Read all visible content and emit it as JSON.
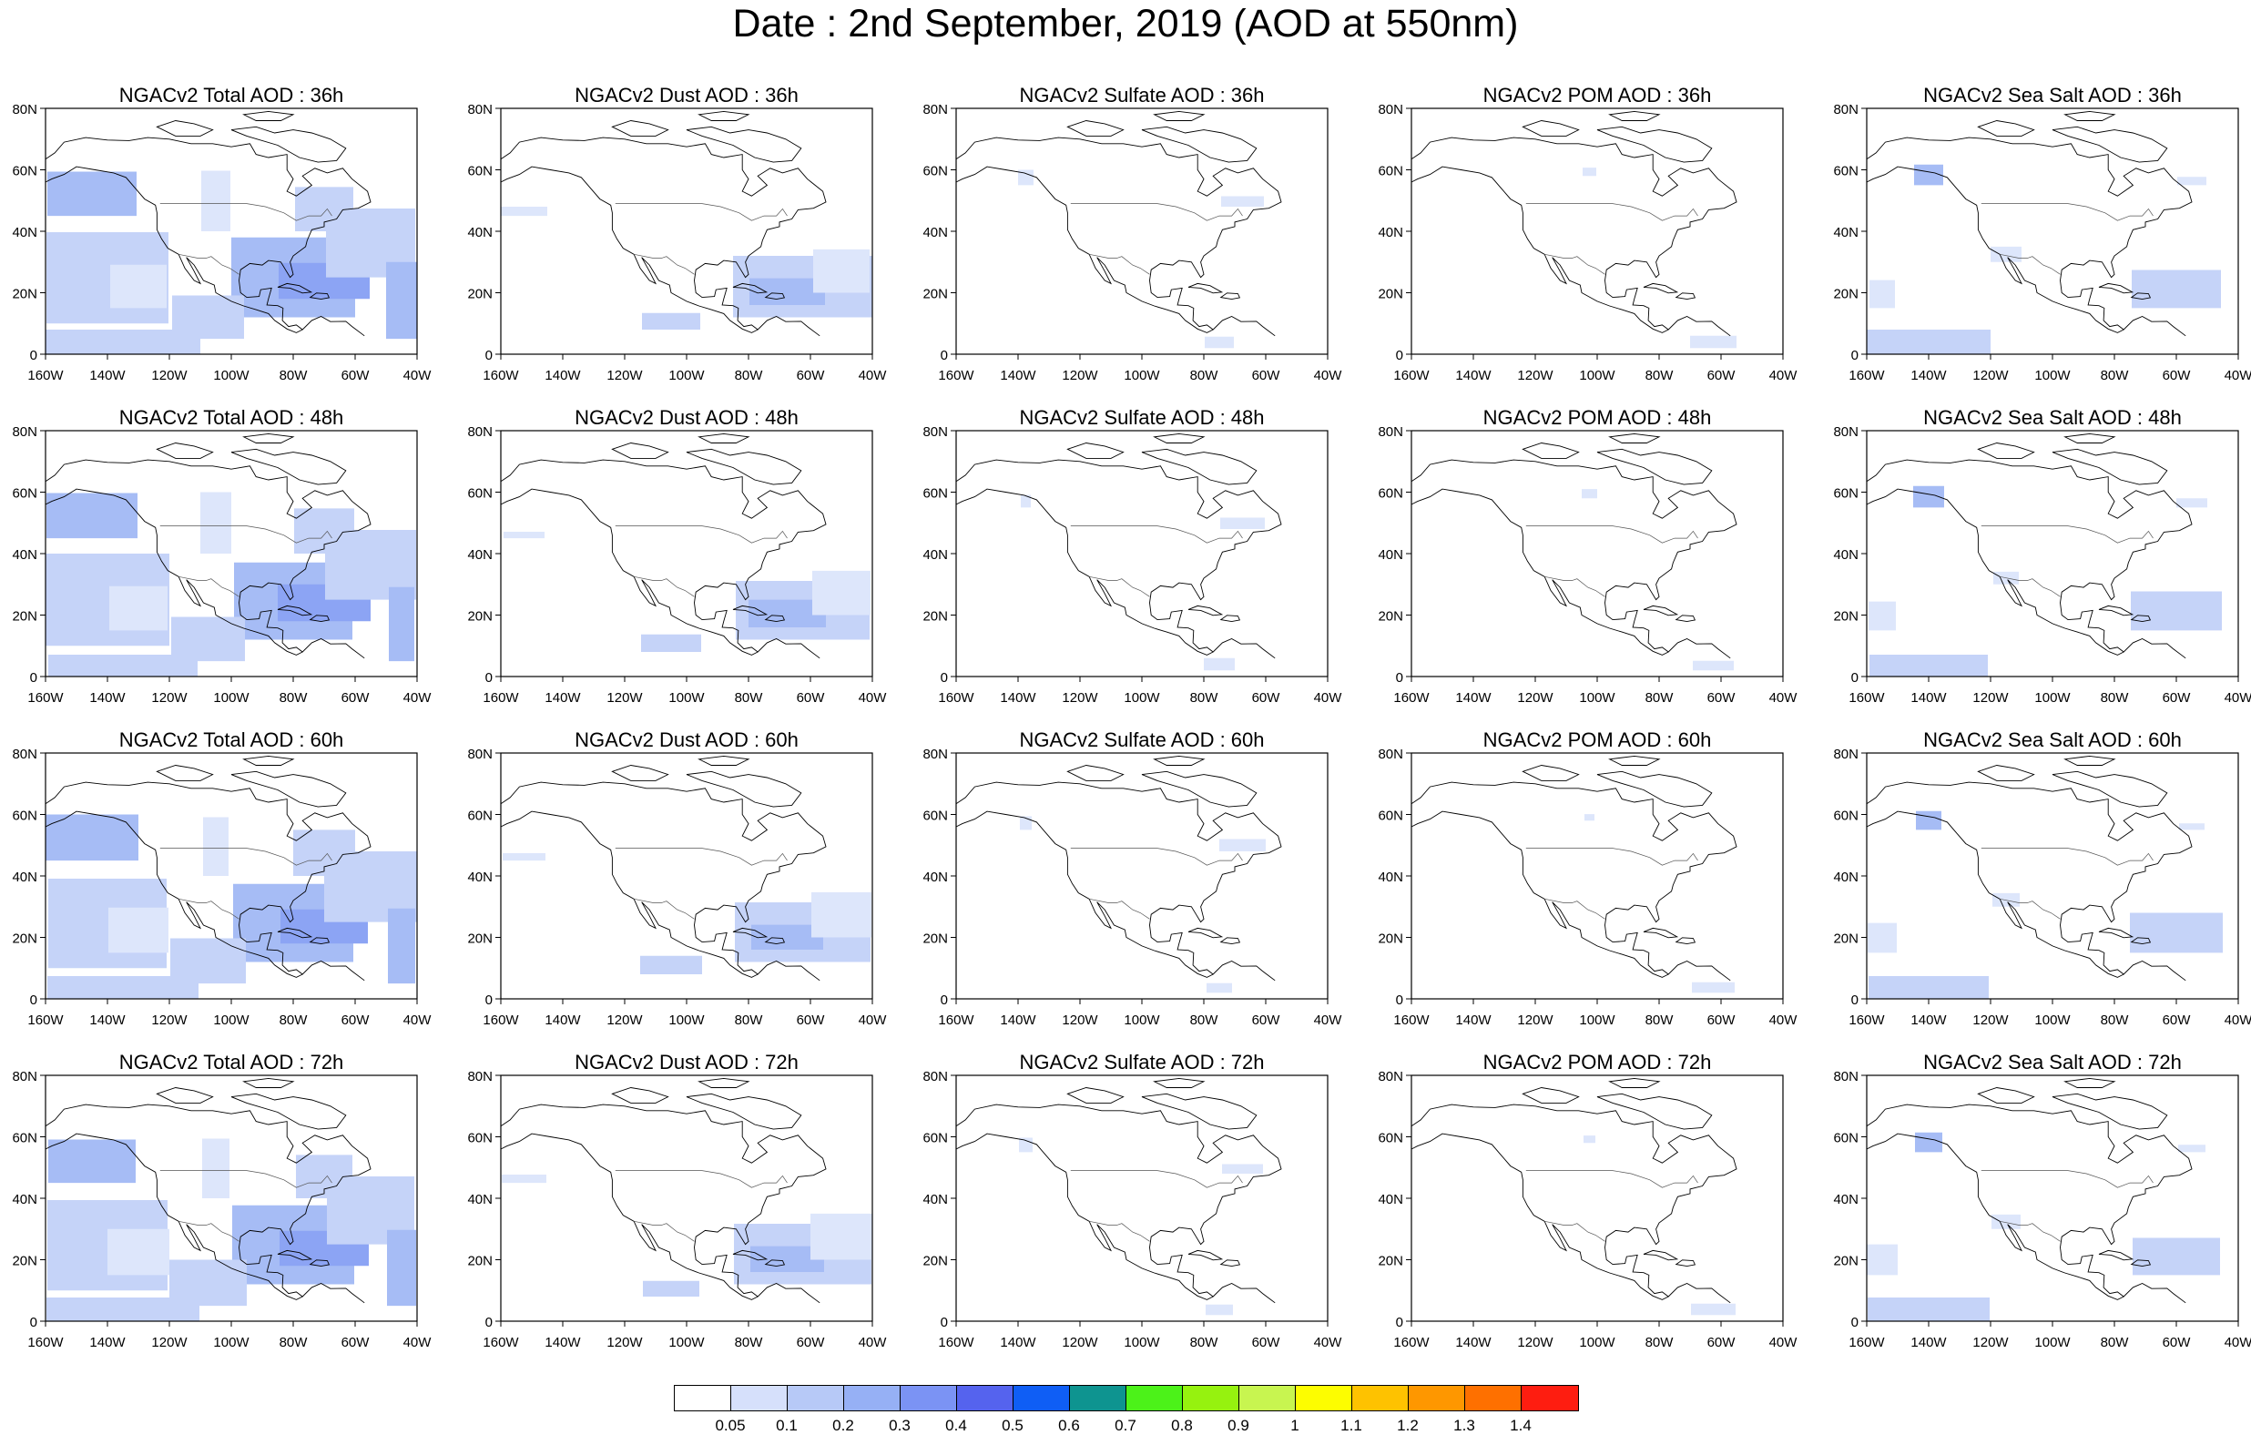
{
  "title": "Date : 2nd September, 2019 (AOD at 550nm)",
  "axes": {
    "lat_ticks": [
      "0",
      "20N",
      "40N",
      "60N",
      "80N"
    ],
    "lon_ticks": [
      "160W",
      "140W",
      "120W",
      "100W",
      "80W",
      "60W",
      "40W"
    ]
  },
  "panel_titles": [
    [
      "NGACv2 Total AOD : 36h",
      "NGACv2 Dust AOD : 36h",
      "NGACv2 Sulfate AOD : 36h",
      "NGACv2 POM AOD : 36h",
      "NGACv2 Sea Salt AOD : 36h"
    ],
    [
      "NGACv2 Total AOD : 48h",
      "NGACv2 Dust AOD : 48h",
      "NGACv2 Sulfate AOD : 48h",
      "NGACv2 POM AOD : 48h",
      "NGACv2 Sea Salt AOD : 48h"
    ],
    [
      "NGACv2 Total AOD : 60h",
      "NGACv2 Dust AOD : 60h",
      "NGACv2 Sulfate AOD : 60h",
      "NGACv2 POM AOD : 60h",
      "NGACv2 Sea Salt AOD : 60h"
    ],
    [
      "NGACv2 Total AOD : 72h",
      "NGACv2 Dust AOD : 72h",
      "NGACv2 Sulfate AOD : 72h",
      "NGACv2 POM AOD : 72h",
      "NGACv2 Sea Salt  AOD : 72h"
    ]
  ],
  "colorbar": {
    "labels": [
      "0.05",
      "0.1",
      "0.2",
      "0.3",
      "0.4",
      "0.5",
      "0.6",
      "0.7",
      "0.8",
      "0.9",
      "1",
      "1.1",
      "1.2",
      "1.3",
      "1.4"
    ],
    "colors": [
      "#ffffff",
      "#d6e0fb",
      "#b7c9f7",
      "#96b0f5",
      "#7b93f4",
      "#5563ee",
      "#0f5ef5",
      "#0e9490",
      "#4cf219",
      "#96f20f",
      "#c8f550",
      "#fdfd00",
      "#fec200",
      "#fe9700",
      "#fe7000",
      "#fe1d10"
    ]
  },
  "colors": {
    "aod_very_light": "#dde6fb",
    "aod_light": "#c5d3f8",
    "aod_medium": "#a6bcf5",
    "aod_strong": "#8ca4f4"
  }
}
